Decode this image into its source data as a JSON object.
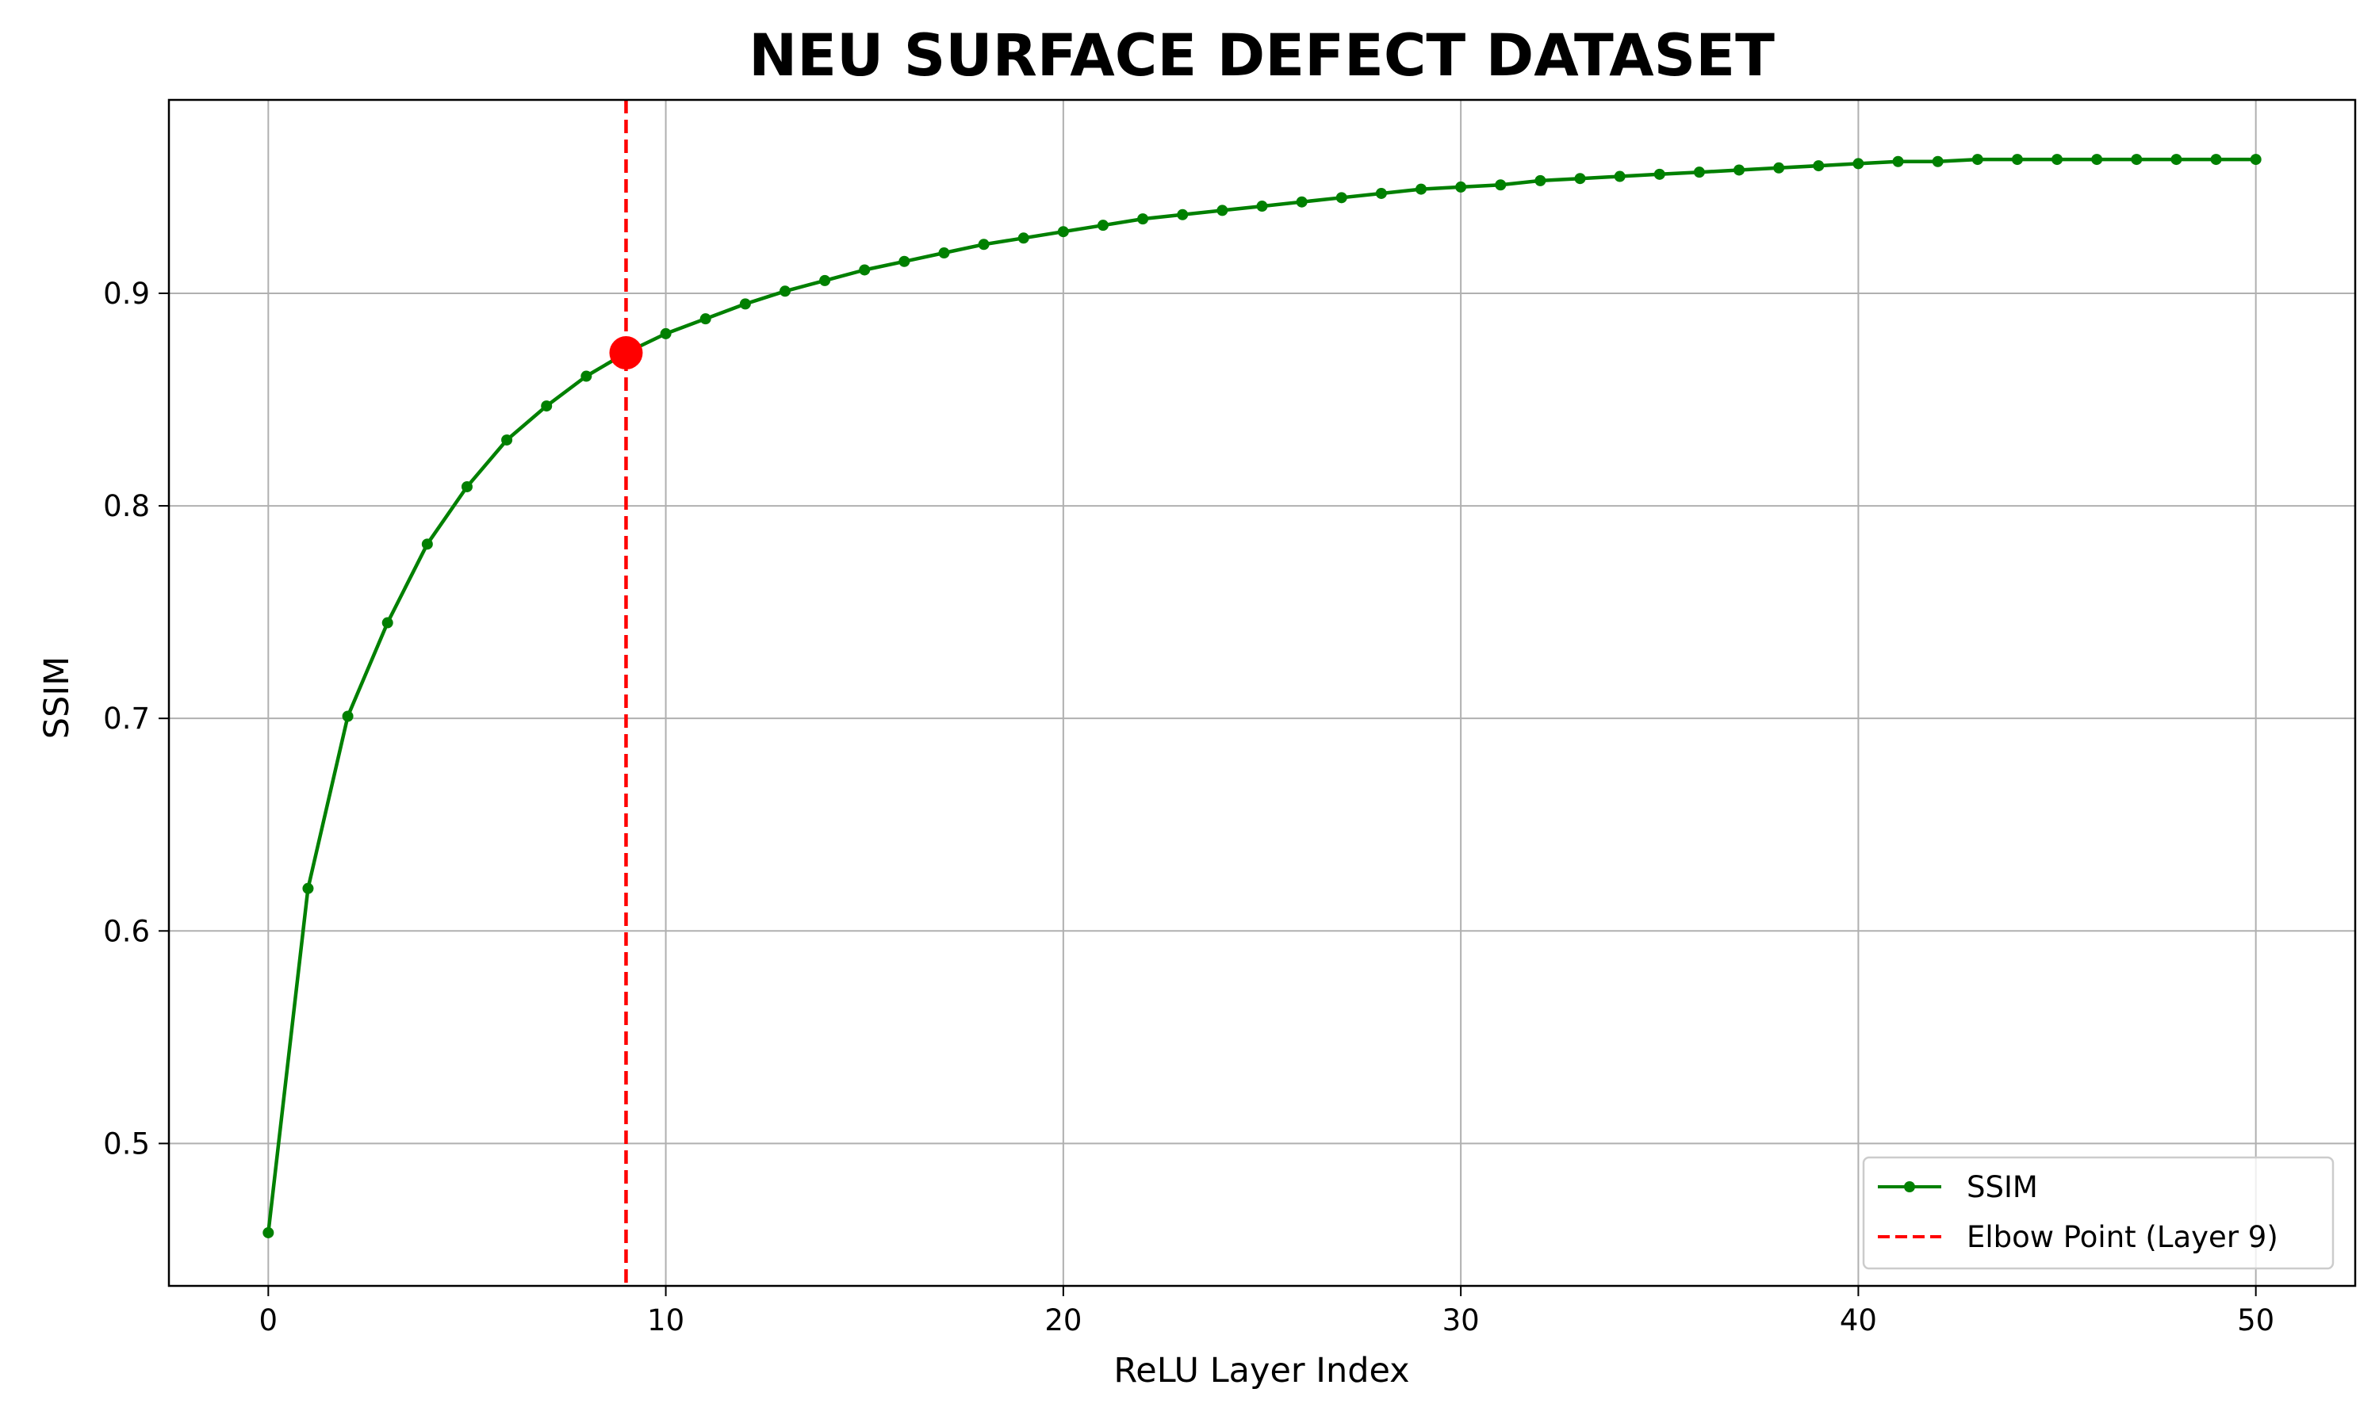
{
  "chart_data": {
    "type": "line",
    "title": "NEU SURFACE DEFECT DATASET",
    "xlabel": "ReLU Layer Index",
    "ylabel": "SSIM",
    "xlim": [
      -2.5,
      52.5
    ],
    "ylim": [
      0.433,
      0.991
    ],
    "xticks": [
      0,
      10,
      20,
      30,
      40,
      50
    ],
    "xtick_labels": [
      "0",
      "10",
      "20",
      "30",
      "40",
      "50"
    ],
    "yticks": [
      0.5,
      0.6,
      0.7,
      0.8,
      0.9
    ],
    "ytick_labels": [
      "0.5",
      "0.6",
      "0.7",
      "0.8",
      "0.9"
    ],
    "grid": true,
    "legend_position": "lower-right",
    "series": [
      {
        "name": "SSIM",
        "color": "#008000",
        "line_style": "solid",
        "marker": "dot",
        "x": [
          0,
          1,
          2,
          3,
          4,
          5,
          6,
          7,
          8,
          9,
          10,
          11,
          12,
          13,
          14,
          15,
          16,
          17,
          18,
          19,
          20,
          21,
          22,
          23,
          24,
          25,
          26,
          27,
          28,
          29,
          30,
          31,
          32,
          33,
          34,
          35,
          36,
          37,
          38,
          39,
          40,
          41,
          42,
          43,
          44,
          45,
          46,
          47,
          48,
          49,
          50
        ],
        "values": [
          0.458,
          0.62,
          0.701,
          0.745,
          0.782,
          0.809,
          0.831,
          0.847,
          0.861,
          0.872,
          0.881,
          0.888,
          0.895,
          0.901,
          0.906,
          0.911,
          0.915,
          0.919,
          0.923,
          0.926,
          0.929,
          0.932,
          0.935,
          0.937,
          0.939,
          0.941,
          0.943,
          0.945,
          0.947,
          0.949,
          0.95,
          0.951,
          0.953,
          0.954,
          0.955,
          0.956,
          0.957,
          0.958,
          0.959,
          0.96,
          0.961,
          0.962,
          0.962,
          0.963,
          0.963,
          0.963,
          0.963,
          0.963,
          0.963,
          0.963,
          0.963
        ]
      }
    ],
    "vline": {
      "name": "Elbow Point (Layer 9)",
      "x": 9,
      "color": "#ff0000",
      "line_style": "dashed"
    },
    "highlight_point": {
      "x": 9,
      "y": 0.872,
      "color": "#ff0000"
    }
  }
}
